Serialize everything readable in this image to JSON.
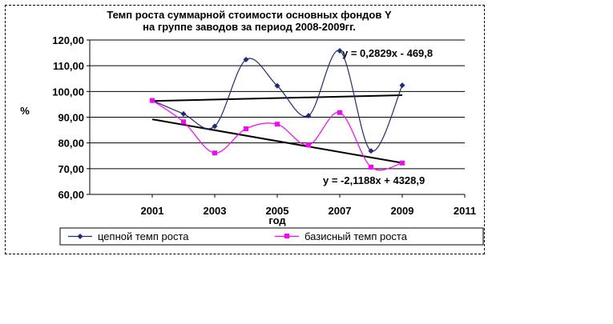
{
  "chart_data": {
    "type": "line",
    "title_lines": [
      "Темп роста суммарной стоимости основных фондов Y",
      "на группе заводов за период 2008-2009гг."
    ],
    "xlabel": "год",
    "ylabel": "%",
    "xlim": [
      1999,
      2011
    ],
    "ylim": [
      60,
      120
    ],
    "x_ticks": [
      2001,
      2003,
      2005,
      2007,
      2009,
      2011
    ],
    "y_ticks": [
      60,
      70,
      80,
      90,
      100,
      110,
      120
    ],
    "y_tick_labels": [
      "60,00",
      "70,00",
      "80,00",
      "90,00",
      "100,00",
      "110,00",
      "120,00"
    ],
    "grid": "horizontal",
    "legend_position": "bottom",
    "x": [
      2001,
      2002,
      2003,
      2004,
      2005,
      2006,
      2007,
      2008,
      2009
    ],
    "series": [
      {
        "name": "цепной темп роста",
        "color": "#1f2a7a",
        "marker": "diamond",
        "values": [
          96.5,
          91.3,
          86.5,
          112.4,
          102.2,
          90.6,
          115.8,
          76.9,
          102.4
        ]
      },
      {
        "name": "базисный темп роста",
        "color": "#ff00ff",
        "marker": "square",
        "values": [
          96.5,
          88.2,
          76.1,
          85.5,
          87.3,
          79.2,
          91.8,
          70.6,
          72.2
        ]
      }
    ],
    "trendlines": [
      {
        "equation": "y = 0,2829x - 469,8",
        "slope": 0.2829,
        "intercept": -469.8,
        "x_range": [
          2001,
          2009
        ],
        "color": "#000000"
      },
      {
        "equation": "y = -2,1188x + 4328,9",
        "slope": -2.1188,
        "intercept": 4328.9,
        "x_range": [
          2001,
          2009
        ],
        "color": "#000000"
      }
    ]
  }
}
